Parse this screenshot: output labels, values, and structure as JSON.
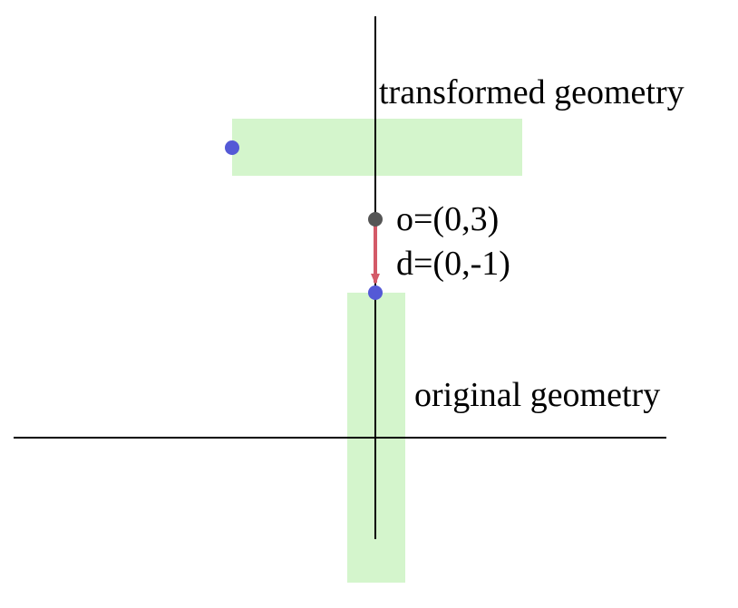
{
  "diagram": {
    "labels": {
      "transformed": "transformed geometry",
      "original": "original geometry",
      "origin": "o=(0,3)",
      "direction": "d=(0,-1)"
    },
    "colors": {
      "axis": "#000000",
      "geometry_fill": "#d4f5cc",
      "point": "#5459d6",
      "origin_point": "#555555",
      "arrow": "#d45a68",
      "text": "#000000"
    }
  }
}
